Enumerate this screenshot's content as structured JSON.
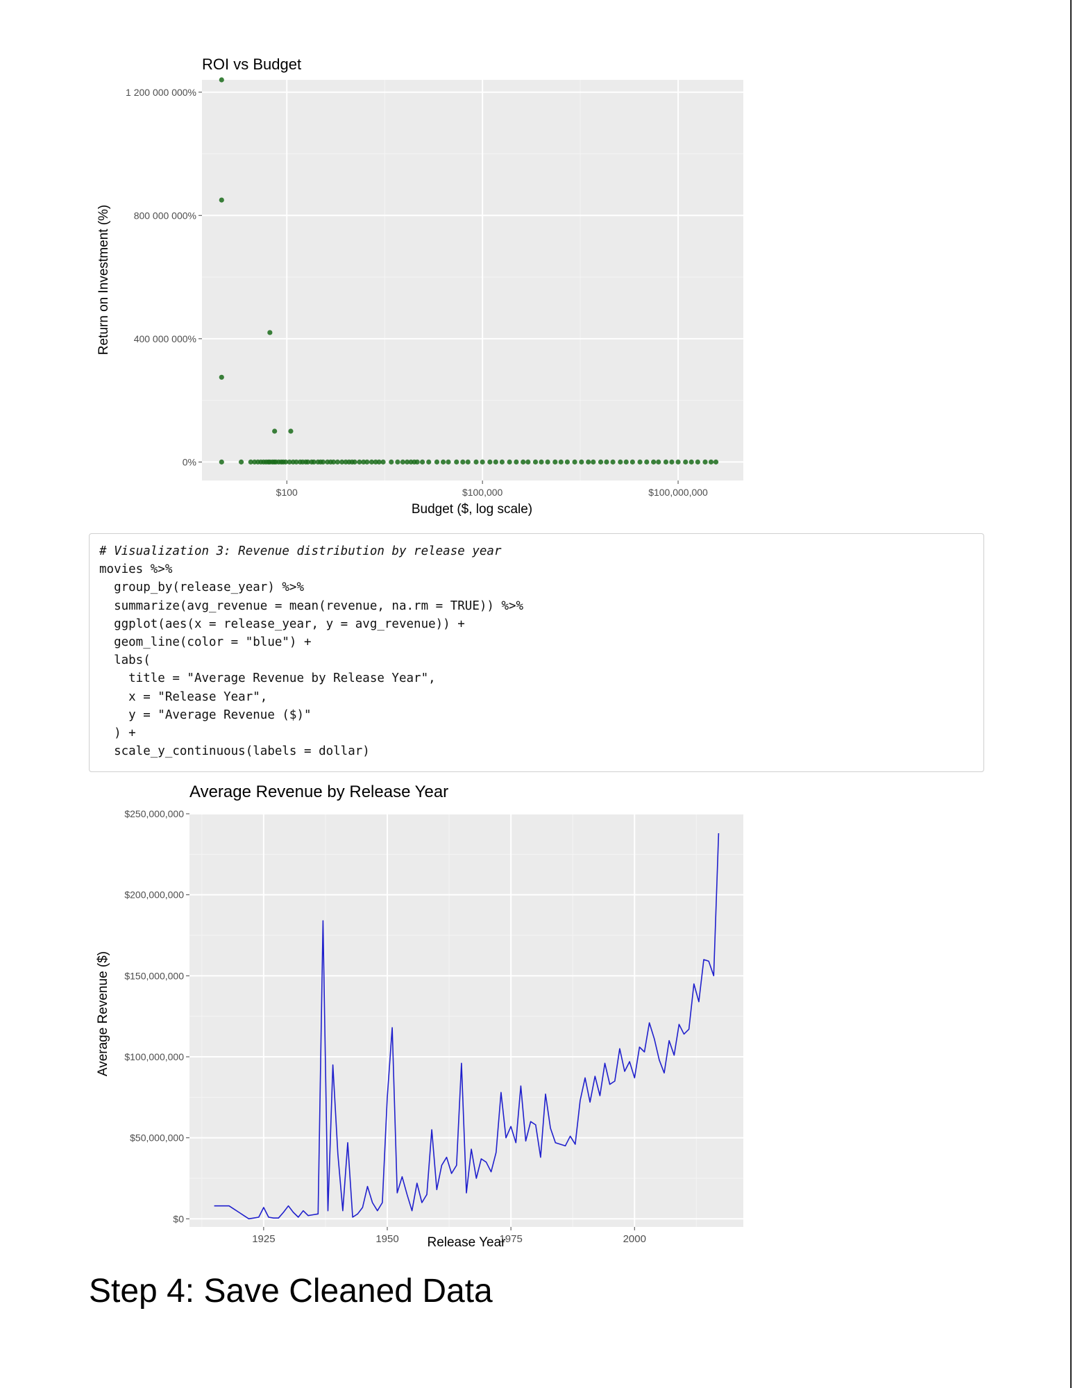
{
  "chart_data": [
    {
      "type": "scatter",
      "title": "ROI vs Budget",
      "xlabel": "Budget ($, log scale)",
      "ylabel": "Return on Investment (%)",
      "x_scale": "log10",
      "x_ticks": [
        100,
        100000,
        100000000
      ],
      "x_tick_labels": [
        "$100",
        "$100,000",
        "$100,000,000"
      ],
      "y_ticks": [
        0,
        4000000,
        8000000,
        12000000
      ],
      "y_tick_labels": [
        "0%",
        "400 000 000%",
        "800 000 000%",
        "1 200 000 000%"
      ],
      "xlim": [
        5,
        1000000000
      ],
      "ylim": [
        -600000,
        12400000
      ],
      "grid": true,
      "point_color": "#1a6b1a",
      "outliers": [
        {
          "x": 10,
          "y": 12400000
        },
        {
          "x": 10,
          "y": 8500000
        },
        {
          "x": 10,
          "y": 2750000
        },
        {
          "x": 55,
          "y": 4200000
        },
        {
          "x": 65,
          "y": 1000000
        },
        {
          "x": 115,
          "y": 1000000
        }
      ],
      "baseline_points_x": [
        10,
        20,
        28,
        32,
        36,
        40,
        44,
        48,
        52,
        55,
        60,
        64,
        68,
        75,
        82,
        88,
        96,
        110,
        125,
        140,
        160,
        175,
        195,
        210,
        240,
        260,
        300,
        330,
        360,
        420,
        470,
        520,
        600,
        700,
        800,
        900,
        1000,
        1100,
        1300,
        1500,
        1700,
        2000,
        2300,
        2600,
        3000,
        4000,
        5000,
        6000,
        7000,
        8000,
        9000,
        10000,
        12000,
        15000,
        20000,
        25000,
        30000,
        40000,
        50000,
        60000,
        80000,
        100000,
        130000,
        160000,
        200000,
        260000,
        330000,
        420000,
        500000,
        650000,
        800000,
        1000000,
        1300000,
        1600000,
        2000000,
        2600000,
        3300000,
        4200000,
        5000000,
        6500000,
        8000000,
        10000000,
        13000000,
        16000000,
        20000000,
        26000000,
        33000000,
        42000000,
        50000000,
        65000000,
        80000000,
        100000000,
        130000000,
        160000000,
        200000000,
        260000000,
        320000000,
        380000000
      ]
    },
    {
      "type": "line",
      "title": "Average Revenue by Release Year",
      "xlabel": "Release Year",
      "ylabel": "Average Revenue ($)",
      "x_ticks": [
        1925,
        1950,
        1975,
        2000
      ],
      "x_tick_labels": [
        "1925",
        "1950",
        "1975",
        "2000"
      ],
      "y_ticks": [
        0,
        50000000,
        100000000,
        150000000,
        200000000,
        250000000
      ],
      "y_tick_labels": [
        "$0",
        "$50,000,000",
        "$100,000,000",
        "$150,000,000",
        "$200,000,000",
        "$250,000,000"
      ],
      "xlim": [
        1910,
        2022
      ],
      "ylim": [
        -5000000,
        250000000
      ],
      "grid": true,
      "line_color": "#1f1fcc",
      "x": [
        1915,
        1916,
        1917,
        1918,
        1919,
        1920,
        1921,
        1922,
        1923,
        1924,
        1925,
        1926,
        1927,
        1928,
        1929,
        1930,
        1931,
        1932,
        1933,
        1934,
        1935,
        1936,
        1937,
        1938,
        1939,
        1940,
        1941,
        1942,
        1943,
        1944,
        1945,
        1946,
        1947,
        1948,
        1949,
        1950,
        1951,
        1952,
        1953,
        1954,
        1955,
        1956,
        1957,
        1958,
        1959,
        1960,
        1961,
        1962,
        1963,
        1964,
        1965,
        1966,
        1967,
        1968,
        1969,
        1970,
        1971,
        1972,
        1973,
        1974,
        1975,
        1976,
        1977,
        1978,
        1979,
        1980,
        1981,
        1982,
        1983,
        1984,
        1985,
        1986,
        1987,
        1988,
        1989,
        1990,
        1991,
        1992,
        1993,
        1994,
        1995,
        1996,
        1997,
        1998,
        1999,
        2000,
        2001,
        2002,
        2003,
        2004,
        2005,
        2006,
        2007,
        2008,
        2009,
        2010,
        2011,
        2012,
        2013,
        2014,
        2015,
        2016,
        2017
      ],
      "y": [
        8000000,
        8000000,
        8000000,
        8000000,
        6000000,
        4000000,
        2000000,
        0,
        500000,
        1000000,
        7000000,
        1000000,
        500000,
        500000,
        4000000,
        8000000,
        4000000,
        1000000,
        5000000,
        2000000,
        2500000,
        3000000,
        184000000,
        5000000,
        95000000,
        40000000,
        5000000,
        47000000,
        1000000,
        3000000,
        7000000,
        20000000,
        10000000,
        5000000,
        10000000,
        75000000,
        118000000,
        16000000,
        26000000,
        15000000,
        5000000,
        22000000,
        10000000,
        15000000,
        55000000,
        18000000,
        33000000,
        38000000,
        28000000,
        33000000,
        96000000,
        16000000,
        43000000,
        25000000,
        37000000,
        35000000,
        29000000,
        41000000,
        78000000,
        50000000,
        57000000,
        47000000,
        82000000,
        48000000,
        60000000,
        58000000,
        38000000,
        77000000,
        56000000,
        47000000,
        46000000,
        45000000,
        51000000,
        46000000,
        73000000,
        87000000,
        72000000,
        88000000,
        76000000,
        96000000,
        83000000,
        85000000,
        105000000,
        91000000,
        97000000,
        87000000,
        106000000,
        103000000,
        121000000,
        111000000,
        98000000,
        90000000,
        110000000,
        101000000,
        120000000,
        114000000,
        117000000,
        145000000,
        134000000,
        160000000,
        159000000,
        150000000,
        238000000
      ]
    }
  ],
  "code": {
    "lines": [
      "# Visualization 3: Revenue distribution by release year",
      "movies %>%",
      "  group_by(release_year) %>%",
      "  summarize(avg_revenue = mean(revenue, na.rm = TRUE)) %>%",
      "  ggplot(aes(x = release_year, y = avg_revenue)) +",
      "  geom_line(color = \"blue\") +",
      "  labs(",
      "    title = \"Average Revenue by Release Year\",",
      "    x = \"Release Year\",",
      "    y = \"Average Revenue ($)\"",
      "  ) +",
      "  scale_y_continuous(labels = dollar)"
    ]
  },
  "heading": "Step 4: Save Cleaned Data"
}
